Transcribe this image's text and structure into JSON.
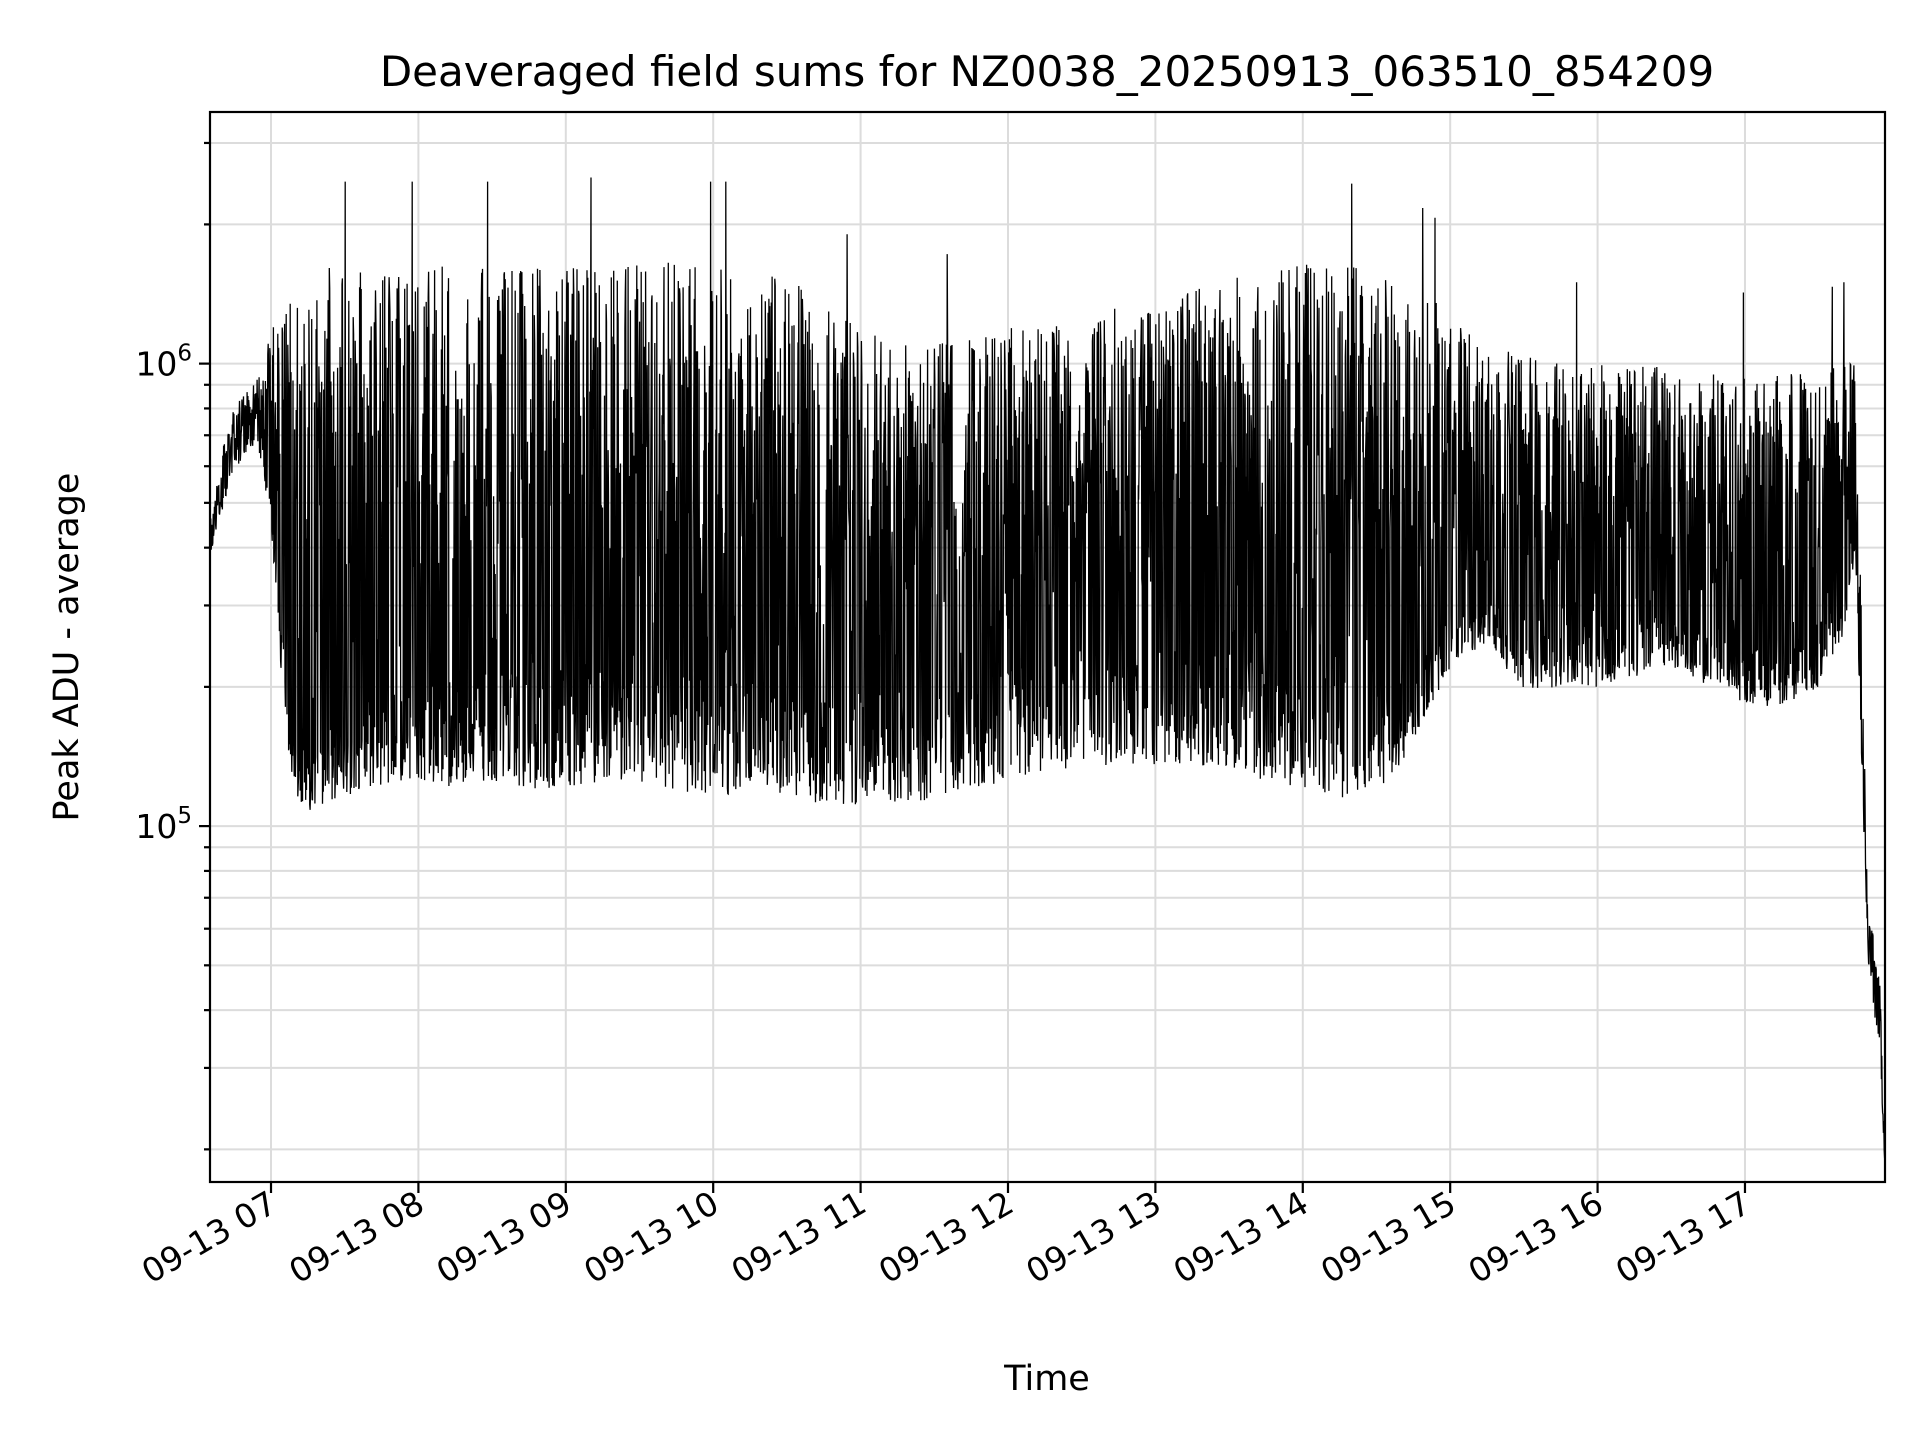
{
  "chart_data": {
    "type": "line",
    "title": "Deaveraged field sums for NZ0038_20250913_063510_854209",
    "xlabel": "Time",
    "ylabel": "Peak ADU - average",
    "x_ticks": [
      "09-13 07",
      "09-13 08",
      "09-13 09",
      "09-13 10",
      "09-13 11",
      "09-13 12",
      "09-13 13",
      "09-13 14",
      "09-13 15",
      "09-13 16",
      "09-13 17"
    ],
    "y_ticks": [
      {
        "value": 100000,
        "base": "10",
        "exp": "5"
      },
      {
        "value": 1000000,
        "base": "10",
        "exp": "6"
      }
    ],
    "y_scale": "log",
    "ylim": [
      17000,
      3500000
    ],
    "xlim": [
      "2025-09-13 06:35:10",
      "2025-09-13 17:57:00"
    ],
    "grid": true,
    "line_color": "#000000",
    "series": [
      {
        "x": [
          "06:35",
          "06:40",
          "06:45",
          "06:50",
          "06:55",
          "07:00",
          "07:05",
          "07:10",
          "07:15",
          "07:20",
          "07:30",
          "07:40",
          "07:50",
          "08:00",
          "08:10",
          "08:20",
          "08:30",
          "08:45",
          "09:00",
          "09:15",
          "09:30",
          "09:45",
          "10:00",
          "10:15",
          "10:30",
          "10:45",
          "11:00",
          "11:15",
          "11:30",
          "11:45",
          "12:00",
          "12:15",
          "12:30",
          "12:45",
          "13:00",
          "13:15",
          "13:30",
          "13:45",
          "14:00",
          "14:15",
          "14:30",
          "14:45",
          "15:00",
          "15:15",
          "15:30",
          "15:45",
          "16:00",
          "16:15",
          "16:30",
          "16:45",
          "17:00",
          "17:15",
          "17:30",
          "17:40",
          "17:45",
          "17:50",
          "17:55",
          "17:57"
        ],
        "y": [
          400000,
          560000,
          700000,
          760000,
          760000,
          520000,
          250000,
          160000,
          150000,
          170000,
          180000,
          190000,
          200000,
          220000,
          210000,
          230000,
          240000,
          230000,
          230000,
          240000,
          240000,
          230000,
          210000,
          220000,
          200000,
          200000,
          200000,
          210000,
          190000,
          210000,
          230000,
          230000,
          240000,
          250000,
          250000,
          250000,
          250000,
          240000,
          230000,
          220000,
          210000,
          210000,
          300000,
          330000,
          280000,
          290000,
          280000,
          290000,
          300000,
          280000,
          270000,
          260000,
          280000,
          330000,
          500000,
          60000,
          40000,
          19000
        ],
        "y_high": [
          450000,
          650000,
          800000,
          880000,
          950000,
          1200000,
          1350000,
          1450000,
          1550000,
          1600000,
          1650000,
          1650000,
          1650000,
          1650000,
          1650000,
          1650000,
          1650000,
          1650000,
          1650000,
          1700000,
          1700000,
          1650000,
          1650000,
          1650000,
          1550000,
          1400000,
          1200000,
          1200000,
          1150000,
          1150000,
          1200000,
          1250000,
          1300000,
          1350000,
          1400000,
          1500000,
          1550000,
          1600000,
          1650000,
          1650000,
          1600000,
          1500000,
          1300000,
          1100000,
          1050000,
          1000000,
          1000000,
          1000000,
          1000000,
          950000,
          950000,
          950000,
          950000,
          1000000,
          1000000,
          70000,
          45000,
          19000
        ],
        "y_low": [
          380000,
          480000,
          580000,
          640000,
          650000,
          450000,
          180000,
          110000,
          105000,
          110000,
          115000,
          120000,
          125000,
          125000,
          120000,
          125000,
          125000,
          120000,
          120000,
          125000,
          125000,
          120000,
          115000,
          120000,
          115000,
          110000,
          110000,
          110000,
          115000,
          120000,
          125000,
          130000,
          135000,
          135000,
          135000,
          135000,
          135000,
          125000,
          120000,
          115000,
          115000,
          150000,
          220000,
          250000,
          190000,
          200000,
          200000,
          210000,
          220000,
          200000,
          180000,
          180000,
          200000,
          260000,
          380000,
          50000,
          32000,
          18000
        ]
      }
    ]
  }
}
